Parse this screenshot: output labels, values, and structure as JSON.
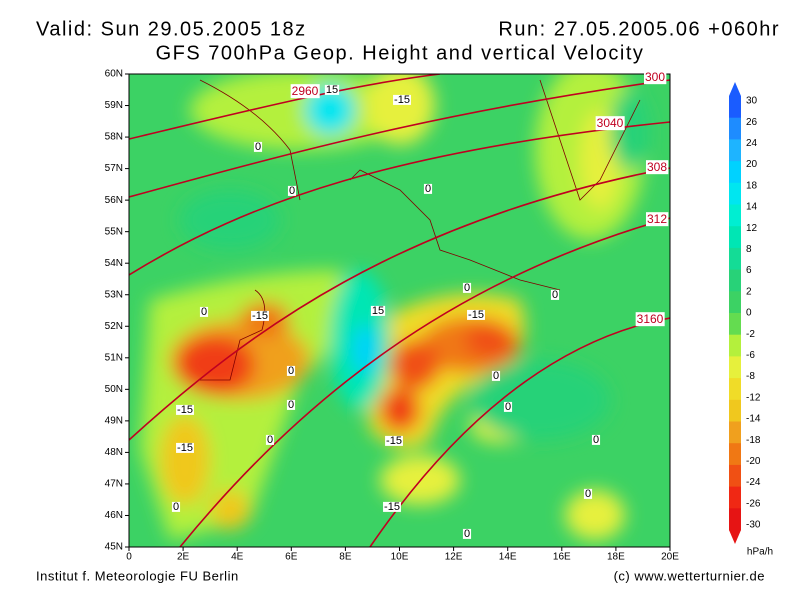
{
  "header": {
    "valid": "Valid: Sun 29.05.2005 18z",
    "run": "Run: 27.05.2005.06 +060hr",
    "title": "GFS 700hPa Geop. Height and vertical Velocity"
  },
  "map": {
    "lat_labels": [
      "60N",
      "59N",
      "58N",
      "57N",
      "56N",
      "55N",
      "54N",
      "53N",
      "52N",
      "51N",
      "50N",
      "49N",
      "48N",
      "47N",
      "46N",
      "45N"
    ],
    "lon_labels": [
      "0",
      "2E",
      "4E",
      "6E",
      "8E",
      "10E",
      "12E",
      "14E",
      "16E",
      "18E",
      "20E"
    ],
    "height_labels": [
      "2960",
      "300",
      "3040",
      "308",
      "312",
      "3160"
    ],
    "velocity_labels": [
      "15",
      "-15",
      "0",
      "0",
      "0",
      "-15",
      "15",
      "-15",
      "-15",
      "-15",
      "0",
      "0",
      "0",
      "-15",
      "0",
      "0",
      "0",
      "0",
      "0",
      "0",
      "0",
      "0",
      "0",
      "-15"
    ]
  },
  "colorbar": {
    "unit": "hPa/h",
    "labels": [
      "30",
      "26",
      "24",
      "20",
      "18",
      "14",
      "12",
      "8",
      "6",
      "2",
      "0",
      "-2",
      "-6",
      "-8",
      "-12",
      "-14",
      "-18",
      "-20",
      "-24",
      "-26",
      "-30"
    ],
    "colors": [
      "#1a5cff",
      "#1e8cff",
      "#1eb4ff",
      "#00d2ff",
      "#00e6f0",
      "#00eed2",
      "#00e6b4",
      "#14dc96",
      "#28d278",
      "#3cd264",
      "#64dc50",
      "#b4f03c",
      "#e6f03c",
      "#f0dc28",
      "#f0c81e",
      "#f0a01e",
      "#f07814",
      "#f05014",
      "#f02814",
      "#e61414"
    ]
  },
  "footer": {
    "left": "Institut f. Meteorologie  FU Berlin",
    "right": "(c) www.wetterturnier.de"
  }
}
